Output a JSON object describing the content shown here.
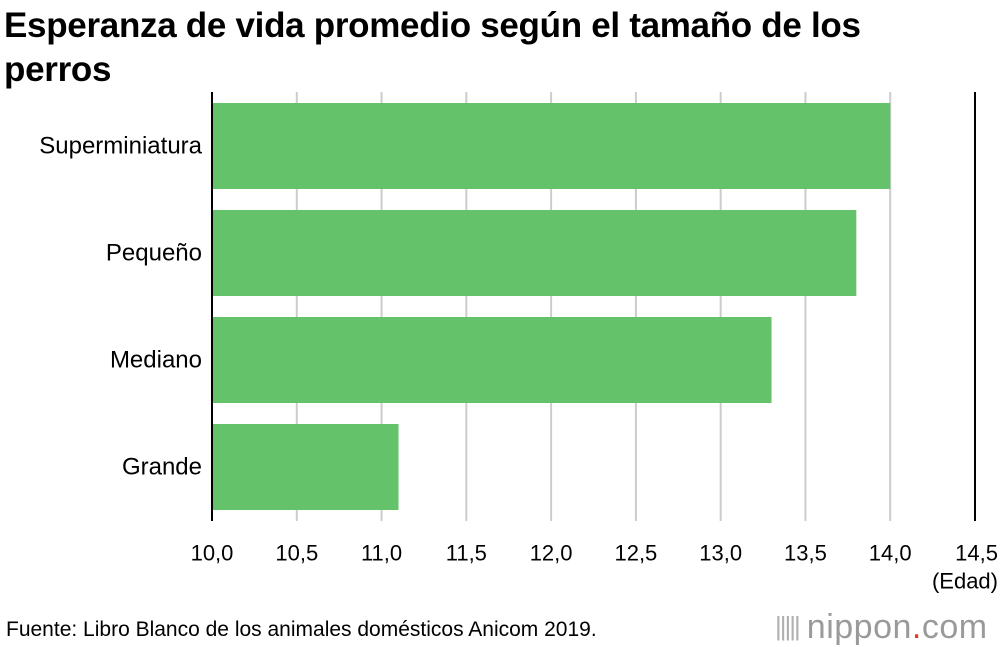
{
  "chart_data": {
    "type": "bar",
    "orientation": "horizontal",
    "title": "Esperanza de vida promedio según el tamaño de los perros",
    "categories": [
      "Superminiatura",
      "Pequeño",
      "Mediano",
      "Grande"
    ],
    "values": [
      14.0,
      13.8,
      13.3,
      11.1
    ],
    "xlim": [
      10.0,
      14.5
    ],
    "xticks": [
      10.0,
      10.5,
      11.0,
      11.5,
      12.0,
      12.5,
      13.0,
      13.5,
      14.0,
      14.5
    ],
    "tick_labels": [
      "10,0",
      "10,5",
      "11,0",
      "11,5",
      "12,0",
      "12,5",
      "13,0",
      "13,5",
      "14,0",
      "14,5"
    ],
    "xlabel": "(Edad)",
    "grid": true,
    "bar_color": "#64c26b",
    "grid_color": "#cccccc"
  },
  "source": "Fuente: Libro Blanco de los animales domésticos Anicom 2019.",
  "logo": {
    "bars": "|||||",
    "name": "nippon",
    "dot": ".",
    "tld": "com",
    "dot_color": "#e8372c"
  }
}
